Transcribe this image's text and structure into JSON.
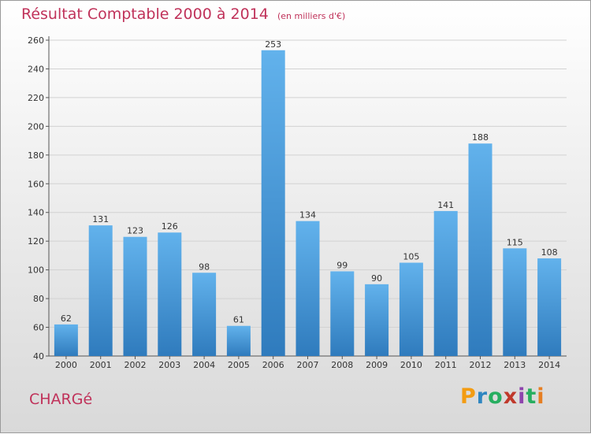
{
  "header": {
    "title": "Résultat Comptable 2000 à 2014",
    "subtitle": "(en milliers d'€)"
  },
  "footer": {
    "commune": "CHARGé",
    "logo_letters": [
      "P",
      "r",
      "o",
      "x",
      "i",
      "t",
      "i"
    ],
    "logo_colors": [
      "#f39c12",
      "#2e86c1",
      "#27ae60",
      "#c0392b",
      "#8e44ad",
      "#27ae60",
      "#e67e22"
    ]
  },
  "colors": {
    "title": "#c0325a",
    "bar": "#4a9ede",
    "bar_light": "#62b2ec",
    "bar_dark": "#2f7bbd"
  },
  "chart_data": {
    "type": "bar",
    "title": "Résultat Comptable 2000 à 2014",
    "subtitle": "(en milliers d'€)",
    "xlabel": "",
    "ylabel": "",
    "categories": [
      "2000",
      "2001",
      "2002",
      "2003",
      "2004",
      "2005",
      "2006",
      "2007",
      "2008",
      "2009",
      "2010",
      "2011",
      "2012",
      "2013",
      "2014"
    ],
    "values": [
      62,
      131,
      123,
      126,
      98,
      61,
      253,
      134,
      99,
      90,
      105,
      141,
      188,
      115,
      108
    ],
    "ylim": [
      40,
      260
    ],
    "yticks": [
      40,
      60,
      80,
      100,
      120,
      140,
      160,
      180,
      200,
      220,
      240,
      260
    ],
    "grid": true,
    "data_labels": true
  }
}
